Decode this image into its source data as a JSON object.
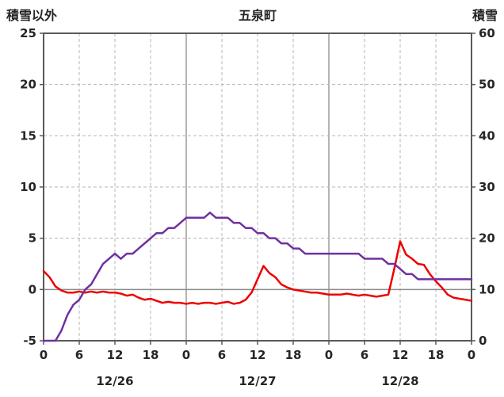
{
  "chart_data": {
    "type": "line",
    "title": "五泉町",
    "x": {
      "hours_total": 72,
      "tick_interval_hours": 6,
      "tick_labels": [
        "0",
        "6",
        "12",
        "18",
        "0",
        "6",
        "12",
        "18",
        "0",
        "6",
        "12",
        "18",
        "0"
      ],
      "day_labels": [
        "12/26",
        "12/27",
        "12/28"
      ]
    },
    "left_axis": {
      "label": "積雪以外",
      "min": -5,
      "max": 25,
      "ticks": [
        25,
        20,
        15,
        10,
        5,
        0,
        -5
      ]
    },
    "right_axis": {
      "label": "積雪",
      "min": 0,
      "max": 60,
      "ticks": [
        60,
        50,
        40,
        30,
        20,
        10,
        0
      ]
    },
    "grid": {
      "vertical_dashed_every_hours": 6,
      "day_boundary_solid": true,
      "horizontal_dashed": true,
      "zero_line_solid": true
    },
    "colors": {
      "frame": "#595959",
      "grid_line": "#b7b7b7",
      "day_line": "#8c8c8c",
      "zero_line": "#8c8c8c",
      "tick_label": "#262626"
    },
    "series": [
      {
        "id": "other-than-snow",
        "name": "積雪以外",
        "axis": "left",
        "color": "#ed0000",
        "values": [
          1.8,
          1.2,
          0.3,
          -0.1,
          -0.3,
          -0.3,
          -0.2,
          -0.3,
          -0.2,
          -0.3,
          -0.2,
          -0.3,
          -0.3,
          -0.4,
          -0.6,
          -0.5,
          -0.8,
          -1.0,
          -0.9,
          -1.1,
          -1.3,
          -1.2,
          -1.3,
          -1.3,
          -1.4,
          -1.3,
          -1.4,
          -1.3,
          -1.3,
          -1.4,
          -1.3,
          -1.2,
          -1.4,
          -1.3,
          -1.0,
          -0.3,
          1.0,
          2.3,
          1.6,
          1.2,
          0.5,
          0.2,
          0.0,
          -0.1,
          -0.2,
          -0.3,
          -0.3,
          -0.4,
          -0.5,
          -0.5,
          -0.5,
          -0.4,
          -0.5,
          -0.6,
          -0.5,
          -0.6,
          -0.7,
          -0.6,
          -0.5,
          2.0,
          4.7,
          3.4,
          3.0,
          2.5,
          2.4,
          1.5,
          0.8,
          0.2,
          -0.5,
          -0.8,
          -0.9,
          -1.0,
          -1.1
        ]
      },
      {
        "id": "snow-depth",
        "name": "積雪",
        "axis": "right",
        "color": "#7030a0",
        "values": [
          0,
          0,
          0,
          2,
          5,
          7,
          8,
          10,
          11,
          13,
          15,
          16,
          17,
          16,
          17,
          17,
          18,
          19,
          20,
          21,
          21,
          22,
          22,
          23,
          24,
          24,
          24,
          24,
          25,
          24,
          24,
          24,
          23,
          23,
          22,
          22,
          21,
          21,
          20,
          20,
          19,
          19,
          18,
          18,
          17,
          17,
          17,
          17,
          17,
          17,
          17,
          17,
          17,
          17,
          16,
          16,
          16,
          16,
          15,
          15,
          14,
          13,
          13,
          12,
          12,
          12,
          12,
          12,
          12,
          12,
          12,
          12,
          12
        ]
      }
    ]
  }
}
